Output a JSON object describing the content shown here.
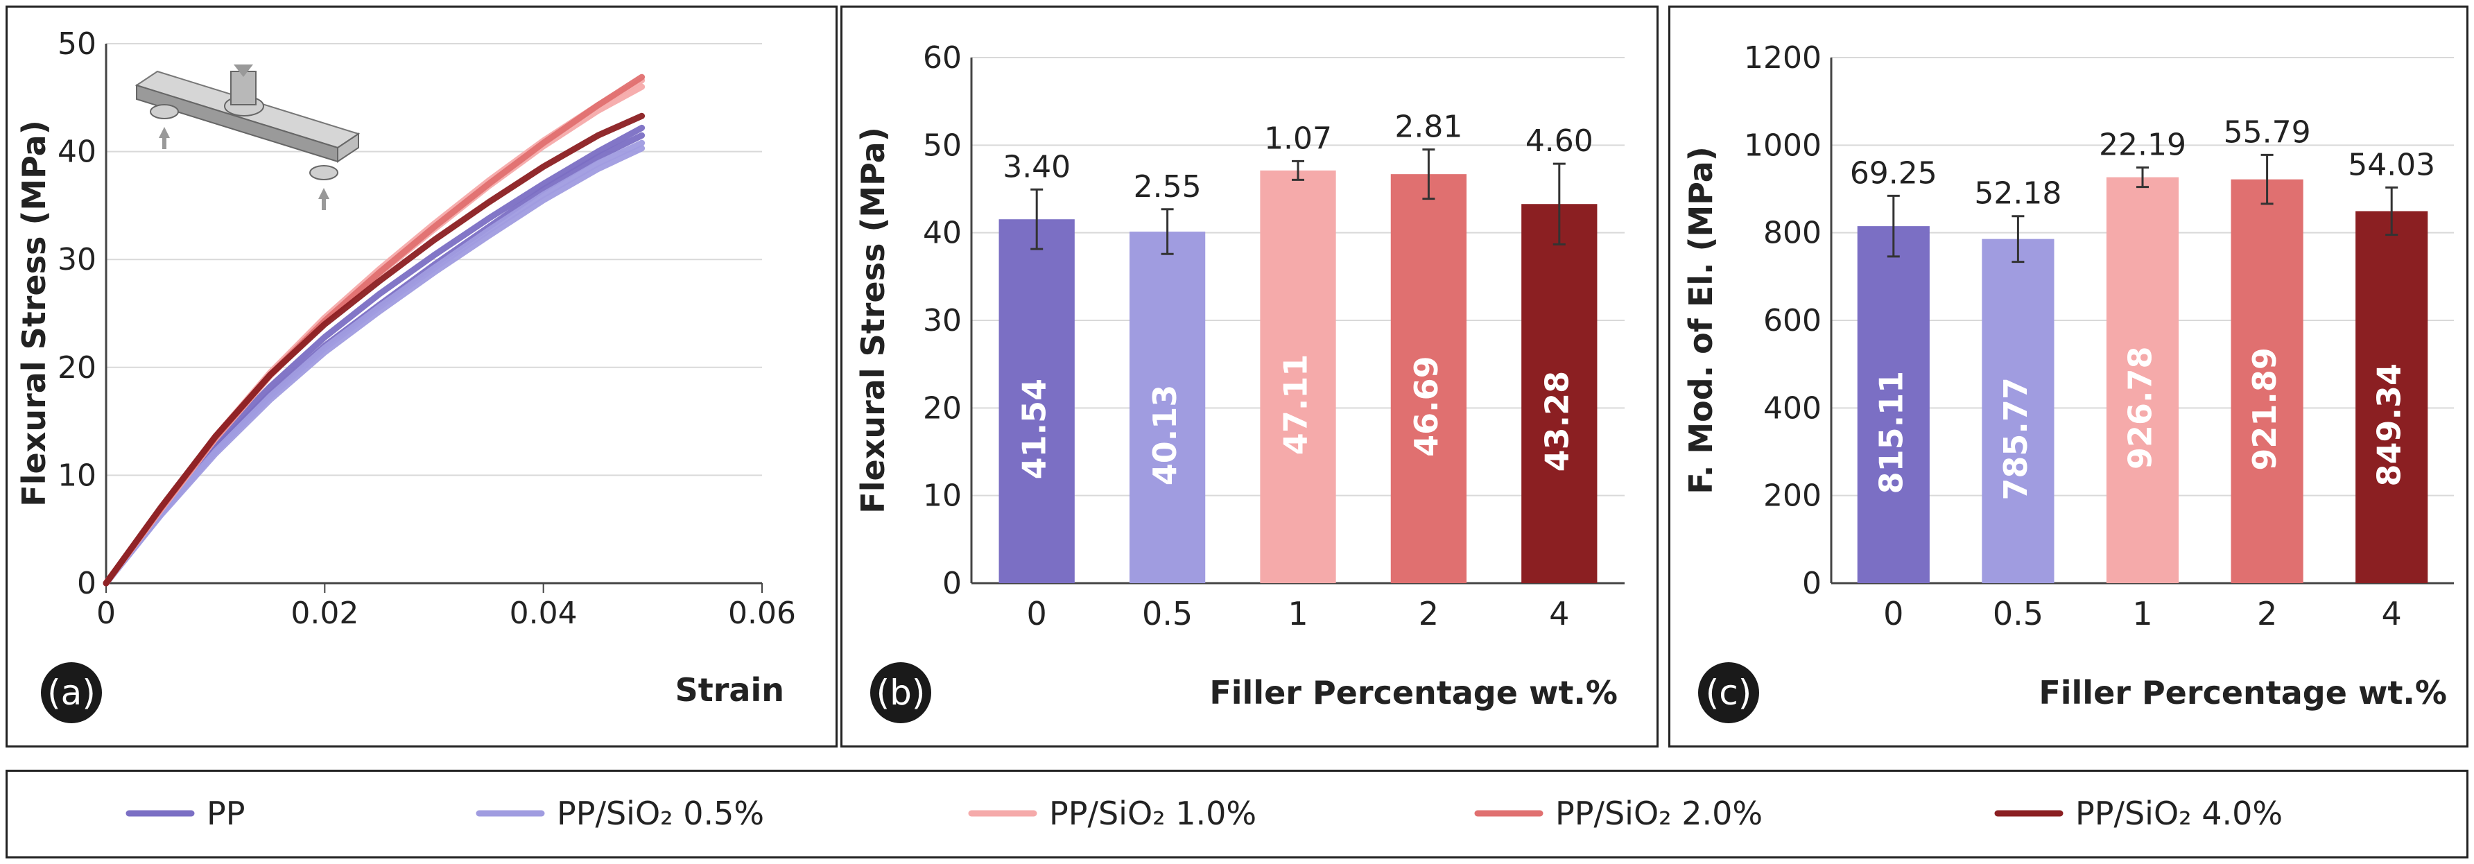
{
  "colors": {
    "pp": "#7b6fc4",
    "s05": "#a09ce0",
    "s10": "#f5aaaa",
    "s20": "#e07070",
    "s40": "#8b1f22",
    "grid": "#d9d9d9",
    "axis": "#444444",
    "text": "#222222"
  },
  "legend": {
    "entries": [
      {
        "key": "pp",
        "label": "PP"
      },
      {
        "key": "s05",
        "label": "PP/SiO₂ 0.5%"
      },
      {
        "key": "s10",
        "label": "PP/SiO₂ 1.0%"
      },
      {
        "key": "s20",
        "label": "PP/SiO₂ 2.0%"
      },
      {
        "key": "s40",
        "label": "PP/SiO₂ 4.0%"
      }
    ]
  },
  "chart_data": [
    {
      "panel_label": "(a)",
      "type": "line",
      "title": "",
      "xlabel": "Strain",
      "ylabel": "Flexural Stress (MPa)",
      "xlim": [
        0,
        0.06
      ],
      "ylim": [
        0,
        50
      ],
      "xticks": [
        "0",
        "0.02",
        "0.04",
        "0.06"
      ],
      "yticks": [
        "0",
        "10",
        "20",
        "30",
        "40",
        "50"
      ],
      "grid": true,
      "inset": "three-point-bending-specimen",
      "series": [
        {
          "name": "PP",
          "key": "pp",
          "x": [
            0,
            0.005,
            0.01,
            0.015,
            0.02,
            0.025,
            0.03,
            0.035,
            0.04,
            0.045,
            0.049
          ],
          "y": [
            0,
            6.5,
            12.5,
            17.5,
            22.0,
            25.8,
            29.5,
            33.0,
            36.5,
            39.5,
            41.5
          ]
        },
        {
          "name": "PP",
          "key": "pp",
          "x": [
            0,
            0.005,
            0.01,
            0.015,
            0.02,
            0.025,
            0.03,
            0.035,
            0.04,
            0.045,
            0.049
          ],
          "y": [
            0,
            6.8,
            13.0,
            18.2,
            22.8,
            26.8,
            30.4,
            33.8,
            37.0,
            40.0,
            42.2
          ]
        },
        {
          "name": "PP/SiO₂ 0.5%",
          "key": "s05",
          "x": [
            0,
            0.005,
            0.01,
            0.015,
            0.02,
            0.025,
            0.03,
            0.035,
            0.04,
            0.045,
            0.049
          ],
          "y": [
            0,
            6.3,
            12.0,
            17.0,
            21.4,
            25.2,
            28.8,
            32.2,
            35.5,
            38.4,
            40.3
          ]
        },
        {
          "name": "PP/SiO₂ 0.5%",
          "key": "s05",
          "x": [
            0,
            0.005,
            0.01,
            0.015,
            0.02,
            0.025,
            0.03,
            0.035,
            0.04,
            0.045,
            0.049
          ],
          "y": [
            0,
            6.4,
            12.2,
            17.3,
            21.8,
            25.6,
            29.2,
            32.7,
            36.0,
            38.9,
            40.8
          ]
        },
        {
          "name": "PP/SiO₂ 1.0%",
          "key": "s10",
          "x": [
            0,
            0.005,
            0.01,
            0.015,
            0.02,
            0.025,
            0.03,
            0.035,
            0.04,
            0.045,
            0.049
          ],
          "y": [
            0,
            6.8,
            13.4,
            19.2,
            24.2,
            28.7,
            32.8,
            36.8,
            40.5,
            43.8,
            46.0
          ]
        },
        {
          "name": "PP/SiO₂ 1.0%",
          "key": "s10",
          "x": [
            0,
            0.005,
            0.01,
            0.015,
            0.02,
            0.025,
            0.03,
            0.035,
            0.04,
            0.045,
            0.049
          ],
          "y": [
            0,
            6.9,
            13.6,
            19.5,
            24.6,
            29.1,
            33.3,
            37.3,
            41.0,
            44.3,
            46.6
          ]
        },
        {
          "name": "PP/SiO₂ 2.0%",
          "key": "s20",
          "x": [
            0,
            0.005,
            0.01,
            0.015,
            0.02,
            0.025,
            0.03,
            0.035,
            0.04,
            0.045,
            0.049
          ],
          "y": [
            0,
            6.9,
            13.5,
            19.3,
            24.3,
            28.8,
            33.0,
            37.0,
            40.8,
            44.3,
            46.9
          ]
        },
        {
          "name": "PP/SiO₂ 4.0%",
          "key": "s40",
          "x": [
            0,
            0.005,
            0.01,
            0.015,
            0.02,
            0.025,
            0.03,
            0.035,
            0.04,
            0.045,
            0.049
          ],
          "y": [
            0,
            7.0,
            13.6,
            19.3,
            24.0,
            28.0,
            31.8,
            35.3,
            38.6,
            41.5,
            43.3
          ]
        }
      ]
    },
    {
      "panel_label": "(b)",
      "type": "bar",
      "title": "",
      "xlabel": "Filler Percentage wt.%",
      "ylabel": "Flexural Stress (MPa)",
      "categories": [
        "0",
        "0.5",
        "1",
        "2",
        "4"
      ],
      "keys": [
        "pp",
        "s05",
        "s10",
        "s20",
        "s40"
      ],
      "values": [
        41.54,
        40.13,
        47.11,
        46.69,
        43.28
      ],
      "value_labels": [
        "41.54",
        "40.13",
        "47.11",
        "46.69",
        "43.28"
      ],
      "errors": [
        3.4,
        2.55,
        1.07,
        2.81,
        4.6
      ],
      "error_labels": [
        "3.40",
        "2.55",
        "1.07",
        "2.81",
        "4.60"
      ],
      "ylim": [
        0,
        60
      ],
      "yticks": [
        "0",
        "10",
        "20",
        "30",
        "40",
        "50",
        "60"
      ],
      "grid": true
    },
    {
      "panel_label": "(c)",
      "type": "bar",
      "title": "",
      "xlabel": "Filler Percentage wt.%",
      "ylabel": "F. Mod. of El. (MPa)",
      "categories": [
        "0",
        "0.5",
        "1",
        "2",
        "4"
      ],
      "keys": [
        "pp",
        "s05",
        "s10",
        "s20",
        "s40"
      ],
      "values": [
        815.11,
        785.77,
        926.78,
        921.89,
        849.34
      ],
      "value_labels": [
        "815.11",
        "785.77",
        "926.78",
        "921.89",
        "849.34"
      ],
      "errors": [
        69.25,
        52.18,
        22.19,
        55.79,
        54.03
      ],
      "error_labels": [
        "69.25",
        "52.18",
        "22.19",
        "55.79",
        "54.03"
      ],
      "ylim": [
        0,
        1200
      ],
      "yticks": [
        "0",
        "200",
        "400",
        "600",
        "800",
        "1000",
        "1200"
      ],
      "grid": true
    }
  ]
}
